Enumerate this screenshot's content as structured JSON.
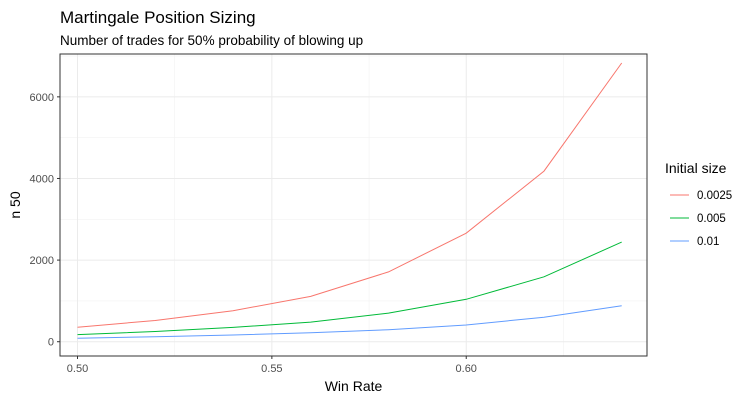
{
  "chart_data": {
    "type": "line",
    "title": "Martingale Position Sizing",
    "subtitle": "Number of trades for 50% probability of blowing up",
    "xlabel": "Win Rate",
    "ylabel": "n 50",
    "xlim": [
      0.4955,
      0.6465
    ],
    "ylim": [
      -350,
      7050
    ],
    "x_ticks": [
      0.5,
      0.55,
      0.6
    ],
    "x_tick_labels": [
      "0.50",
      "0.55",
      "0.60"
    ],
    "y_ticks": [
      0,
      2000,
      4000,
      6000
    ],
    "y_tick_labels": [
      "0",
      "2000",
      "4000",
      "6000"
    ],
    "grid": true,
    "legend_title": "Initial size",
    "legend_position": "right",
    "x": [
      0.5,
      0.52,
      0.54,
      0.56,
      0.58,
      0.6,
      0.62,
      0.64
    ],
    "series": [
      {
        "name": "0.0025",
        "color": "#f8766d",
        "values": [
          355,
          520,
          760,
          1110,
          1710,
          2660,
          4180,
          6830
        ]
      },
      {
        "name": "0.005",
        "color": "#00ba38",
        "values": [
          175,
          250,
          350,
          480,
          700,
          1040,
          1590,
          2440
        ]
      },
      {
        "name": "0.01",
        "color": "#619cff",
        "values": [
          85,
          120,
          165,
          220,
          295,
          410,
          600,
          880
        ]
      }
    ]
  }
}
